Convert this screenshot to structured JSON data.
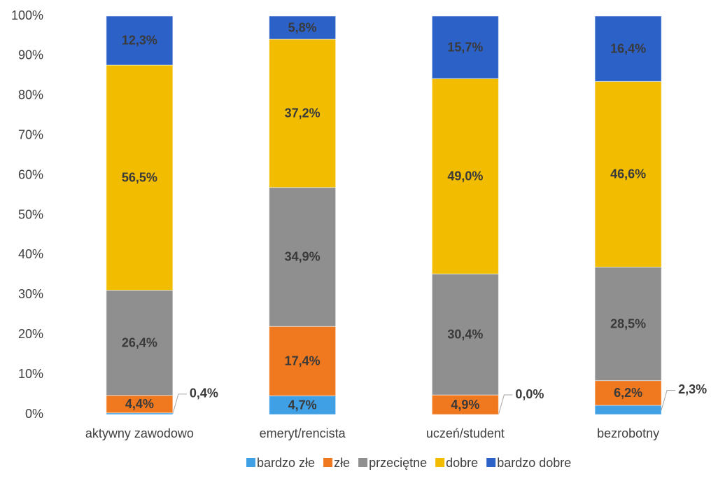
{
  "chart_data": {
    "type": "stacked_bar",
    "categories": [
      "aktywny zawodowo",
      "emeryt/rencista",
      "uczeń/student",
      "bezrobotny"
    ],
    "series": [
      {
        "name": "bardzo złe",
        "color": "#3fa0e6",
        "values": [
          0.4,
          4.7,
          0.0,
          2.3
        ],
        "value_labels": [
          "0,4%",
          "4,7%",
          "0,0%",
          "2,3%"
        ]
      },
      {
        "name": "złe",
        "color": "#f0781e",
        "values": [
          4.4,
          17.4,
          4.9,
          6.2
        ],
        "value_labels": [
          "4,4%",
          "17,4%",
          "4,9%",
          "6,2%"
        ]
      },
      {
        "name": "przeciętne",
        "color": "#8f8f8f",
        "values": [
          26.4,
          34.9,
          30.4,
          28.5
        ],
        "value_labels": [
          "26,4%",
          "34,9%",
          "30,4%",
          "28,5%"
        ]
      },
      {
        "name": "dobre",
        "color": "#f2bd00",
        "values": [
          56.5,
          37.2,
          49.0,
          46.6
        ],
        "value_labels": [
          "56,5%",
          "37,2%",
          "49,0%",
          "46,6%"
        ]
      },
      {
        "name": "bardzo dobre",
        "color": "#2c62c8",
        "values": [
          12.3,
          5.8,
          15.7,
          16.4
        ],
        "value_labels": [
          "12,3%",
          "5,8%",
          "15,7%",
          "16,4%"
        ]
      }
    ],
    "ylim": [
      0,
      100
    ],
    "yticks": [
      {
        "value": 0,
        "label": "0%"
      },
      {
        "value": 10,
        "label": "10%"
      },
      {
        "value": 20,
        "label": "20%"
      },
      {
        "value": 30,
        "label": "30%"
      },
      {
        "value": 40,
        "label": "40%"
      },
      {
        "value": 50,
        "label": "50%"
      },
      {
        "value": 60,
        "label": "60%"
      },
      {
        "value": 70,
        "label": "70%"
      },
      {
        "value": 80,
        "label": "80%"
      },
      {
        "value": 90,
        "label": "90%"
      },
      {
        "value": 100,
        "label": "100%"
      }
    ],
    "legend": "bottom"
  }
}
